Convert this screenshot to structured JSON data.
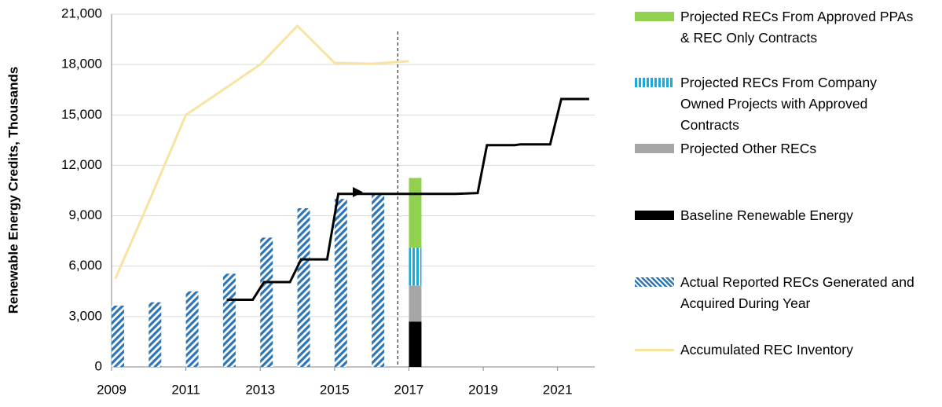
{
  "chart_data": {
    "type": "bar",
    "y_label": "Renewable Energy Credits, Thousands",
    "xlim": [
      2009,
      2022
    ],
    "xticks": [
      2009,
      2011,
      2013,
      2015,
      2017,
      2019,
      2021
    ],
    "ylim": [
      0,
      21000
    ],
    "yticks": [
      {
        "value": 0,
        "label": "0"
      },
      {
        "value": 3000,
        "label": "3,000"
      },
      {
        "value": 6000,
        "label": "6,000"
      },
      {
        "value": 9000,
        "label": "9,000"
      },
      {
        "value": 12000,
        "label": "12,000"
      },
      {
        "value": 15000,
        "label": "15,000"
      },
      {
        "value": 18000,
        "label": "18,000"
      },
      {
        "value": 21000,
        "label": "21,000"
      }
    ],
    "grid": true,
    "reference_line_x": 2016.7,
    "series": [
      {
        "name": "Projected RECs From Approved PPAs & REC Only Contracts",
        "kind": "stack",
        "pattern": "solid",
        "color": "#92d050",
        "x": [
          2017
        ],
        "values": [
          4150
        ]
      },
      {
        "name": "Projected RECs From Company Owned Projects with Approved Contracts",
        "kind": "stack",
        "pattern": "vertical",
        "color": "#1ba8dc",
        "x": [
          2017
        ],
        "values": [
          2250
        ]
      },
      {
        "name": "Projected Other RECs",
        "kind": "stack",
        "pattern": "solid",
        "color": "#a6a6a6",
        "x": [
          2017
        ],
        "values": [
          2150
        ]
      },
      {
        "name": "Baseline Renewable Energy",
        "kind": "stack",
        "pattern": "solid",
        "color": "#000000",
        "x": [
          2017
        ],
        "values": [
          2700
        ]
      },
      {
        "name": "Actual Reported RECs Generated and Acquired During Year",
        "kind": "bar",
        "pattern": "diagonal",
        "color": "#2e75b6",
        "x": [
          2009,
          2010,
          2011,
          2012,
          2013,
          2014,
          2015,
          2016
        ],
        "values": [
          3650,
          3850,
          4500,
          5550,
          7700,
          9450,
          10000,
          10300
        ]
      },
      {
        "name": "Accumulated REC Inventory",
        "kind": "line",
        "color": "#f9e3a0",
        "x": [
          2009.1,
          2010,
          2011,
          2012,
          2013,
          2014,
          2015,
          2016,
          2017
        ],
        "values": [
          5250,
          9800,
          15000,
          16500,
          18000,
          20300,
          18100,
          18050,
          18200
        ]
      },
      {
        "kind": "line",
        "color": "#000000",
        "x": [
          2012.1,
          2012.8,
          2013.1,
          2013.8,
          2014.1,
          2014.8,
          2015.1,
          2015.8,
          2018.25,
          2018.85,
          2019.1,
          2019.85,
          2020,
          2020.8,
          2021.1,
          2021.85
        ],
        "values": [
          4000,
          4000,
          5050,
          5050,
          6400,
          6400,
          10300,
          10300,
          10300,
          10350,
          13200,
          13200,
          13250,
          13250,
          15950,
          15950
        ]
      }
    ]
  }
}
